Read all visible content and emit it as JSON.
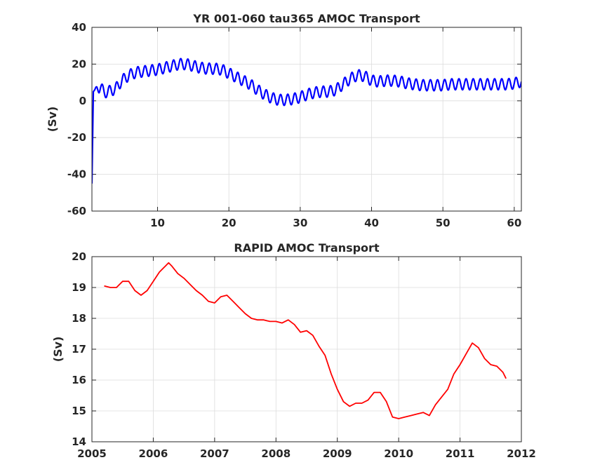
{
  "chart_data": [
    {
      "type": "line",
      "title": "YR 001-060 tau365 AMOC Transport",
      "xlabel": "",
      "ylabel": "(Sv)",
      "xlim": [
        0.8,
        61
      ],
      "ylim": [
        -60,
        40
      ],
      "xticks": [
        10,
        20,
        30,
        40,
        50,
        60
      ],
      "yticks": [
        -60,
        -40,
        -20,
        0,
        20,
        40
      ],
      "grid": true,
      "line_color": "#0000ff",
      "series": [
        {
          "x": [
            0.8,
            0.9,
            1.0,
            1.5,
            2.0,
            2.5,
            3.0,
            3.5,
            4.0,
            5.0,
            6.0,
            7.0,
            8.0,
            9.0,
            10.0,
            11.0,
            12.0,
            13.0,
            14.0,
            15.0,
            16.0,
            17.0,
            18.0,
            19.0,
            20.0,
            21.0,
            22.0,
            23.0,
            24.0,
            25.0,
            26.0,
            27.0,
            28.0,
            29.0,
            30.0,
            31.0,
            32.0,
            33.0,
            34.0,
            35.0,
            36.0,
            37.0,
            38.0,
            39.0,
            40.0,
            41.0,
            42.0,
            43.0,
            44.0,
            45.0,
            46.0,
            47.0,
            48.0,
            49.0,
            50.0,
            51.0,
            52.0,
            53.0,
            54.0,
            55.0,
            56.0,
            57.0,
            58.0,
            59.0,
            60.0,
            61.0
          ],
          "values": [
            -45,
            -20,
            5,
            7.5,
            7,
            5,
            4.5,
            6,
            6,
            11,
            14,
            15.5,
            16,
            16.5,
            17,
            18,
            19,
            20,
            20,
            19,
            18,
            17.5,
            17.5,
            17,
            15,
            13,
            11,
            9,
            6,
            3.5,
            1.5,
            0.5,
            0.5,
            1,
            2,
            3.5,
            4.5,
            5,
            5,
            6,
            9,
            12,
            14,
            13.5,
            11,
            10.5,
            11,
            11,
            10.5,
            9.5,
            9,
            8.5,
            8.5,
            8.5,
            8.5,
            9,
            9,
            9,
            9,
            9,
            9,
            9,
            9,
            9,
            9.5,
            10.5
          ],
          "oscillation_amplitude": 3
        }
      ]
    },
    {
      "type": "line",
      "title": "RAPID AMOC Transport",
      "xlabel": "",
      "ylabel": "(Sv)",
      "xlim": [
        2005,
        2012
      ],
      "ylim": [
        14,
        20
      ],
      "xticks": [
        2005,
        2006,
        2007,
        2008,
        2009,
        2010,
        2011,
        2012
      ],
      "yticks": [
        14,
        15,
        16,
        17,
        18,
        19,
        20
      ],
      "grid": true,
      "line_color": "#ff0000",
      "series": [
        {
          "x": [
            2005.2,
            2005.3,
            2005.4,
            2005.5,
            2005.6,
            2005.7,
            2005.8,
            2005.9,
            2006.0,
            2006.1,
            2006.2,
            2006.25,
            2006.3,
            2006.4,
            2006.5,
            2006.6,
            2006.7,
            2006.8,
            2006.9,
            2007.0,
            2007.1,
            2007.2,
            2007.3,
            2007.4,
            2007.5,
            2007.6,
            2007.7,
            2007.8,
            2007.9,
            2008.0,
            2008.1,
            2008.2,
            2008.3,
            2008.4,
            2008.5,
            2008.6,
            2008.7,
            2008.8,
            2008.9,
            2009.0,
            2009.1,
            2009.2,
            2009.3,
            2009.4,
            2009.5,
            2009.6,
            2009.7,
            2009.8,
            2009.9,
            2010.0,
            2010.1,
            2010.2,
            2010.3,
            2010.4,
            2010.5,
            2010.6,
            2010.7,
            2010.8,
            2010.9,
            2011.0,
            2011.1,
            2011.2,
            2011.3,
            2011.4,
            2011.5,
            2011.6,
            2011.7,
            2011.75
          ],
          "values": [
            19.05,
            19.0,
            19.0,
            19.2,
            19.2,
            18.9,
            18.75,
            18.9,
            19.2,
            19.5,
            19.7,
            19.8,
            19.7,
            19.45,
            19.3,
            19.1,
            18.9,
            18.75,
            18.55,
            18.5,
            18.7,
            18.75,
            18.55,
            18.35,
            18.15,
            18.0,
            17.95,
            17.95,
            17.9,
            17.9,
            17.85,
            17.95,
            17.8,
            17.55,
            17.6,
            17.45,
            17.1,
            16.8,
            16.2,
            15.7,
            15.3,
            15.15,
            15.25,
            15.25,
            15.35,
            15.6,
            15.6,
            15.3,
            14.8,
            14.75,
            14.8,
            14.85,
            14.9,
            14.95,
            14.85,
            15.2,
            15.45,
            15.7,
            16.2,
            16.5,
            16.85,
            17.2,
            17.05,
            16.7,
            16.5,
            16.45,
            16.25,
            16.05
          ]
        }
      ]
    }
  ]
}
